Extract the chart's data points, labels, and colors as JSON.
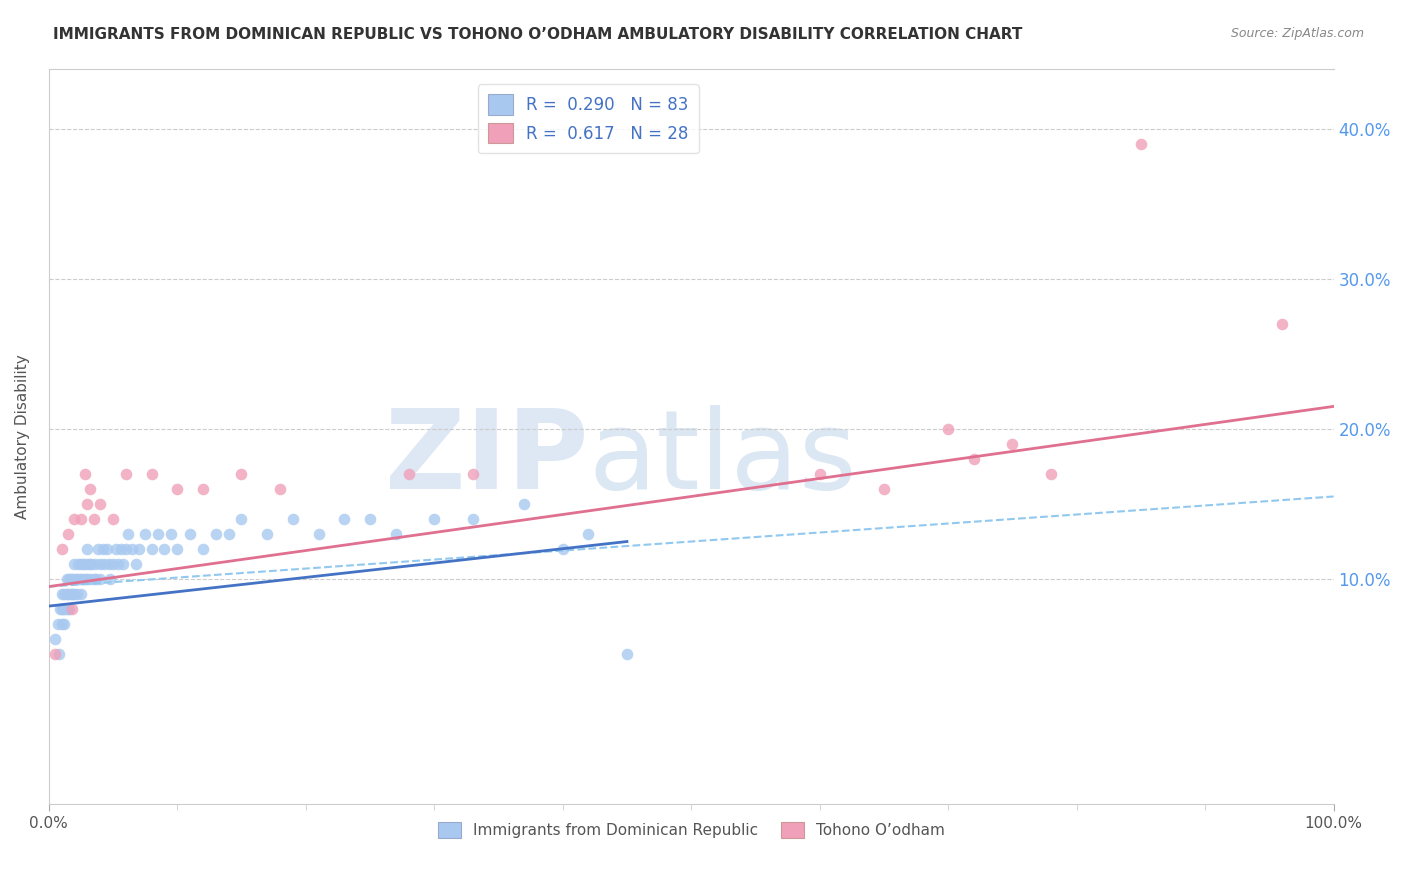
{
  "title": "IMMIGRANTS FROM DOMINICAN REPUBLIC VS TOHONO O’ODHAM AMBULATORY DISABILITY CORRELATION CHART",
  "source": "Source: ZipAtlas.com",
  "ylabel": "Ambulatory Disability",
  "yticks": [
    "40.0%",
    "30.0%",
    "20.0%",
    "10.0%"
  ],
  "ytick_vals": [
    0.4,
    0.3,
    0.2,
    0.1
  ],
  "xlim": [
    0.0,
    1.0
  ],
  "ylim": [
    -0.05,
    0.44
  ],
  "R_blue": 0.29,
  "N_blue": 83,
  "R_pink": 0.617,
  "N_pink": 28,
  "color_blue": "#a8c8f0",
  "color_pink": "#f0a0b8",
  "line_blue": "#4472c4",
  "line_pink": "#e07090",
  "line_dashed_color": "#90c8f0",
  "watermark_zip": "ZIP",
  "watermark_atlas": "atlas",
  "legend_label_blue": "Immigrants from Dominican Republic",
  "legend_label_pink": "Tohono O’odham",
  "blue_x": [
    0.005,
    0.007,
    0.008,
    0.009,
    0.01,
    0.01,
    0.01,
    0.011,
    0.012,
    0.012,
    0.013,
    0.014,
    0.014,
    0.015,
    0.015,
    0.016,
    0.016,
    0.017,
    0.017,
    0.018,
    0.019,
    0.02,
    0.02,
    0.021,
    0.022,
    0.022,
    0.023,
    0.024,
    0.025,
    0.025,
    0.026,
    0.027,
    0.028,
    0.029,
    0.03,
    0.03,
    0.031,
    0.032,
    0.033,
    0.035,
    0.036,
    0.037,
    0.038,
    0.04,
    0.04,
    0.042,
    0.043,
    0.045,
    0.047,
    0.048,
    0.05,
    0.052,
    0.054,
    0.056,
    0.058,
    0.06,
    0.062,
    0.065,
    0.068,
    0.07,
    0.075,
    0.08,
    0.085,
    0.09,
    0.095,
    0.1,
    0.11,
    0.12,
    0.13,
    0.14,
    0.15,
    0.17,
    0.19,
    0.21,
    0.23,
    0.25,
    0.27,
    0.3,
    0.33,
    0.37,
    0.4,
    0.42,
    0.45
  ],
  "blue_y": [
    0.06,
    0.07,
    0.05,
    0.08,
    0.07,
    0.08,
    0.09,
    0.08,
    0.09,
    0.07,
    0.08,
    0.09,
    0.1,
    0.08,
    0.09,
    0.08,
    0.1,
    0.09,
    0.1,
    0.09,
    0.1,
    0.09,
    0.11,
    0.1,
    0.09,
    0.1,
    0.11,
    0.1,
    0.11,
    0.09,
    0.1,
    0.11,
    0.1,
    0.11,
    0.1,
    0.12,
    0.11,
    0.1,
    0.11,
    0.1,
    0.11,
    0.1,
    0.12,
    0.11,
    0.1,
    0.12,
    0.11,
    0.12,
    0.11,
    0.1,
    0.11,
    0.12,
    0.11,
    0.12,
    0.11,
    0.12,
    0.13,
    0.12,
    0.11,
    0.12,
    0.13,
    0.12,
    0.13,
    0.12,
    0.13,
    0.12,
    0.13,
    0.12,
    0.13,
    0.13,
    0.14,
    0.13,
    0.14,
    0.13,
    0.14,
    0.14,
    0.13,
    0.14,
    0.14,
    0.15,
    0.12,
    0.13,
    0.05
  ],
  "pink_x": [
    0.005,
    0.01,
    0.015,
    0.018,
    0.02,
    0.025,
    0.028,
    0.03,
    0.032,
    0.035,
    0.04,
    0.05,
    0.06,
    0.08,
    0.1,
    0.12,
    0.15,
    0.18,
    0.28,
    0.33,
    0.6,
    0.65,
    0.7,
    0.72,
    0.75,
    0.78,
    0.85,
    0.96
  ],
  "pink_y": [
    0.05,
    0.12,
    0.13,
    0.08,
    0.14,
    0.14,
    0.17,
    0.15,
    0.16,
    0.14,
    0.15,
    0.14,
    0.17,
    0.17,
    0.16,
    0.16,
    0.17,
    0.16,
    0.17,
    0.17,
    0.17,
    0.16,
    0.2,
    0.18,
    0.19,
    0.17,
    0.39,
    0.27
  ],
  "blue_line_x0": 0.0,
  "blue_line_x1": 0.45,
  "blue_line_y0": 0.082,
  "blue_line_y1": 0.125,
  "pink_line_x0": 0.0,
  "pink_line_x1": 1.0,
  "pink_line_y0": 0.095,
  "pink_line_y1": 0.215,
  "dash_line_x0": 0.0,
  "dash_line_x1": 1.0,
  "dash_line_y0": 0.095,
  "dash_line_y1": 0.155
}
